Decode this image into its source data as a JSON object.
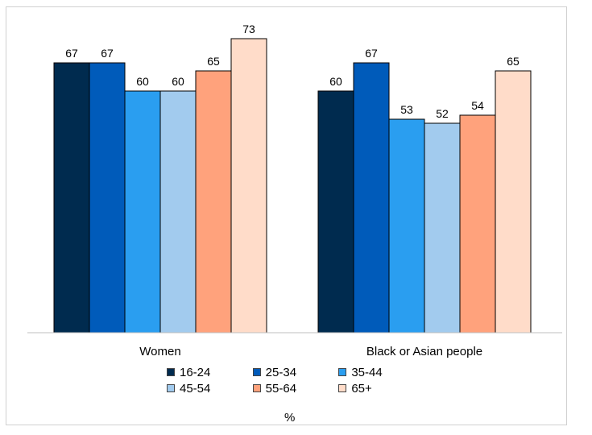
{
  "chart_data": {
    "type": "bar",
    "categories": [
      "Women",
      "Black or Asian people"
    ],
    "series": [
      {
        "name": "16-24",
        "color": "#002b4f",
        "values": [
          67,
          60
        ]
      },
      {
        "name": "25-34",
        "color": "#005bba",
        "values": [
          67,
          67
        ]
      },
      {
        "name": "35-44",
        "color": "#2a9ef0",
        "values": [
          60,
          53
        ]
      },
      {
        "name": "45-54",
        "color": "#a2cbee",
        "values": [
          60,
          52
        ]
      },
      {
        "name": "55-64",
        "color": "#ffa27c",
        "values": [
          65,
          54
        ]
      },
      {
        "name": "65+",
        "color": "#ffdcc9",
        "values": [
          73,
          65
        ]
      }
    ],
    "data_labels": true,
    "ylim": [
      0,
      80
    ],
    "grid": false,
    "legend_position": "bottom",
    "xlabel": "%"
  }
}
